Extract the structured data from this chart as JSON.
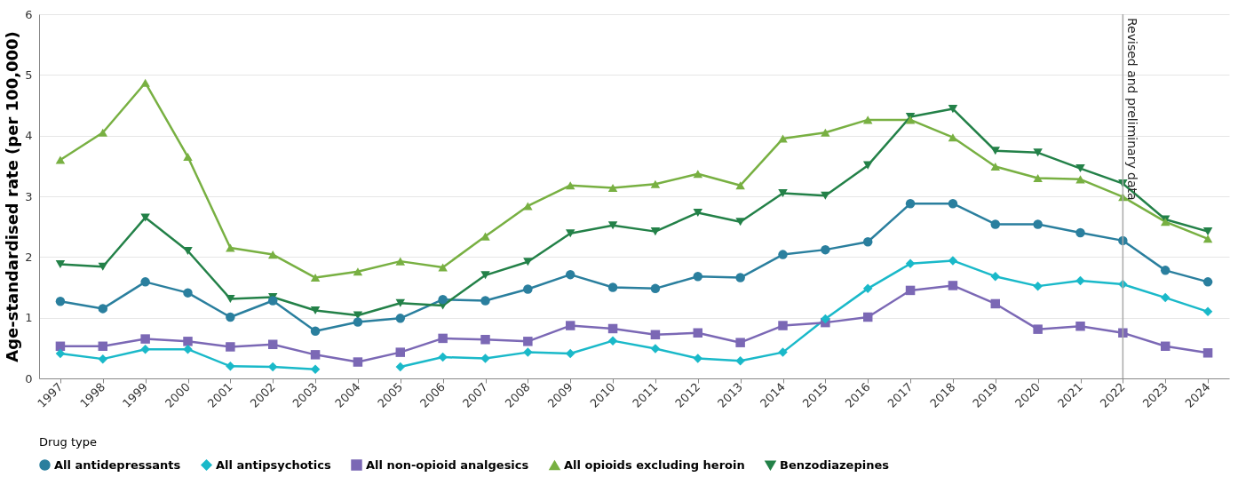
{
  "chart_data": {
    "type": "line",
    "ylabel": "Age-standardised rate (per 100,000)",
    "legend_title": "Drug type",
    "categories": [
      "1997",
      "1998",
      "1999",
      "2000",
      "2001",
      "2002",
      "2003",
      "2004",
      "2005",
      "2006",
      "2007",
      "2008",
      "2009",
      "2010",
      "2011",
      "2012",
      "2013",
      "2014",
      "2015",
      "2016",
      "2017",
      "2018",
      "2019",
      "2020",
      "2021",
      "2022",
      "2023",
      "2024"
    ],
    "ylim": [
      0,
      6
    ],
    "yticks": [
      0,
      1,
      2,
      3,
      4,
      5,
      6
    ],
    "grid": "y",
    "legend": "bottom",
    "ref_lines": [
      {
        "axis": "x",
        "value": "2022",
        "label": "Revised and preliminary data",
        "color": "#aaaaaa"
      }
    ],
    "series": [
      {
        "name": "All antidepressants",
        "color": "#2a7f9e",
        "marker": "circle",
        "values": [
          1.27,
          1.15,
          1.59,
          1.41,
          1.01,
          1.28,
          0.78,
          0.93,
          0.99,
          1.3,
          1.28,
          1.47,
          1.71,
          1.5,
          1.48,
          1.68,
          1.66,
          2.04,
          2.12,
          2.25,
          2.88,
          2.88,
          2.54,
          2.54,
          2.4,
          2.27,
          1.78,
          1.59
        ]
      },
      {
        "name": "All antipsychotics",
        "color": "#1ab9c9",
        "marker": "diamond",
        "values": [
          0.41,
          0.32,
          0.48,
          0.48,
          0.2,
          0.19,
          0.15,
          null,
          0.19,
          0.35,
          0.33,
          0.43,
          0.41,
          0.62,
          0.49,
          0.33,
          0.29,
          0.43,
          0.98,
          1.48,
          1.89,
          1.94,
          1.68,
          1.52,
          1.61,
          1.55,
          1.33,
          1.1
        ]
      },
      {
        "name": "All non-opioid analgesics",
        "color": "#7b68b5",
        "marker": "square",
        "values": [
          0.53,
          0.53,
          0.65,
          0.61,
          0.52,
          0.56,
          0.39,
          0.27,
          0.43,
          0.66,
          0.64,
          0.61,
          0.87,
          0.82,
          0.72,
          0.75,
          0.59,
          0.87,
          0.92,
          1.01,
          1.45,
          1.53,
          1.23,
          0.81,
          0.86,
          0.75,
          0.53,
          0.42
        ]
      },
      {
        "name": "All opioids excluding heroin",
        "color": "#78b042",
        "marker": "triangle",
        "values": [
          3.6,
          4.05,
          4.87,
          3.65,
          2.15,
          2.04,
          1.66,
          1.76,
          1.93,
          1.83,
          2.34,
          2.84,
          3.18,
          3.14,
          3.2,
          3.37,
          3.18,
          3.95,
          4.05,
          4.26,
          4.26,
          3.97,
          3.49,
          3.3,
          3.28,
          2.99,
          2.58,
          2.3
        ]
      },
      {
        "name": "Benzodiazepines",
        "color": "#238148",
        "marker": "triangle-down",
        "values": [
          1.88,
          1.84,
          2.65,
          2.1,
          1.31,
          1.34,
          1.12,
          1.04,
          1.24,
          1.2,
          1.7,
          1.92,
          2.39,
          2.52,
          2.42,
          2.73,
          2.58,
          3.05,
          3.01,
          3.51,
          4.31,
          4.44,
          3.75,
          3.72,
          3.46,
          3.21,
          2.62,
          2.42
        ]
      }
    ]
  }
}
